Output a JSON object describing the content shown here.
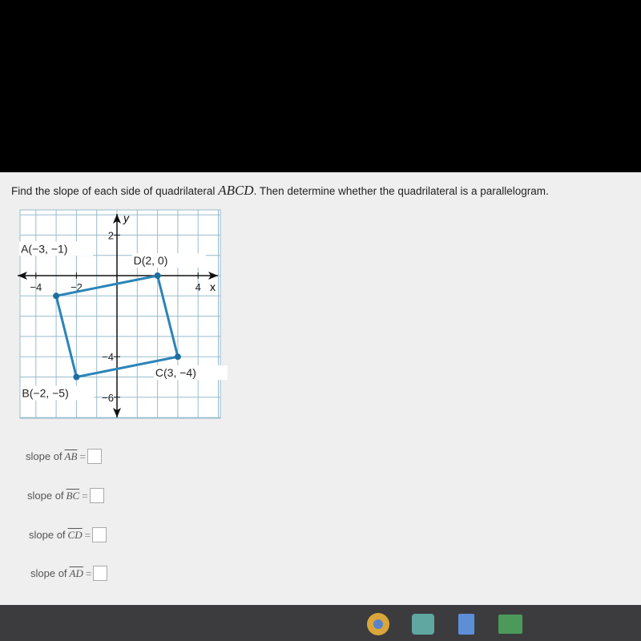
{
  "question": {
    "before": "Find the slope of each side of quadrilateral",
    "name": "ABCD",
    "after": ". Then determine whether the quadrilateral is a parallelogram."
  },
  "graph": {
    "x_label": "x",
    "y_label": "y",
    "xticks": [
      {
        "value": -4,
        "label": "−4"
      },
      {
        "value": -2,
        "label": "−2"
      },
      4
    ],
    "yticks": [
      2,
      {
        "value": -4,
        "label": "−4"
      },
      {
        "value": -6,
        "label": "−6"
      }
    ],
    "points": [
      {
        "label": "A(−3, −1)",
        "x": -3,
        "y": -1
      },
      {
        "label": "B(−2, −5)",
        "x": -2,
        "y": -5
      },
      {
        "label": "C(3, −4)",
        "x": 3,
        "y": -4
      },
      {
        "label": "D(2, 0)",
        "x": 2,
        "y": 0
      }
    ]
  },
  "answers": {
    "prompt": "slope of",
    "equals": "=",
    "segments": [
      "AB",
      "BC",
      "CD",
      "AD"
    ]
  }
}
